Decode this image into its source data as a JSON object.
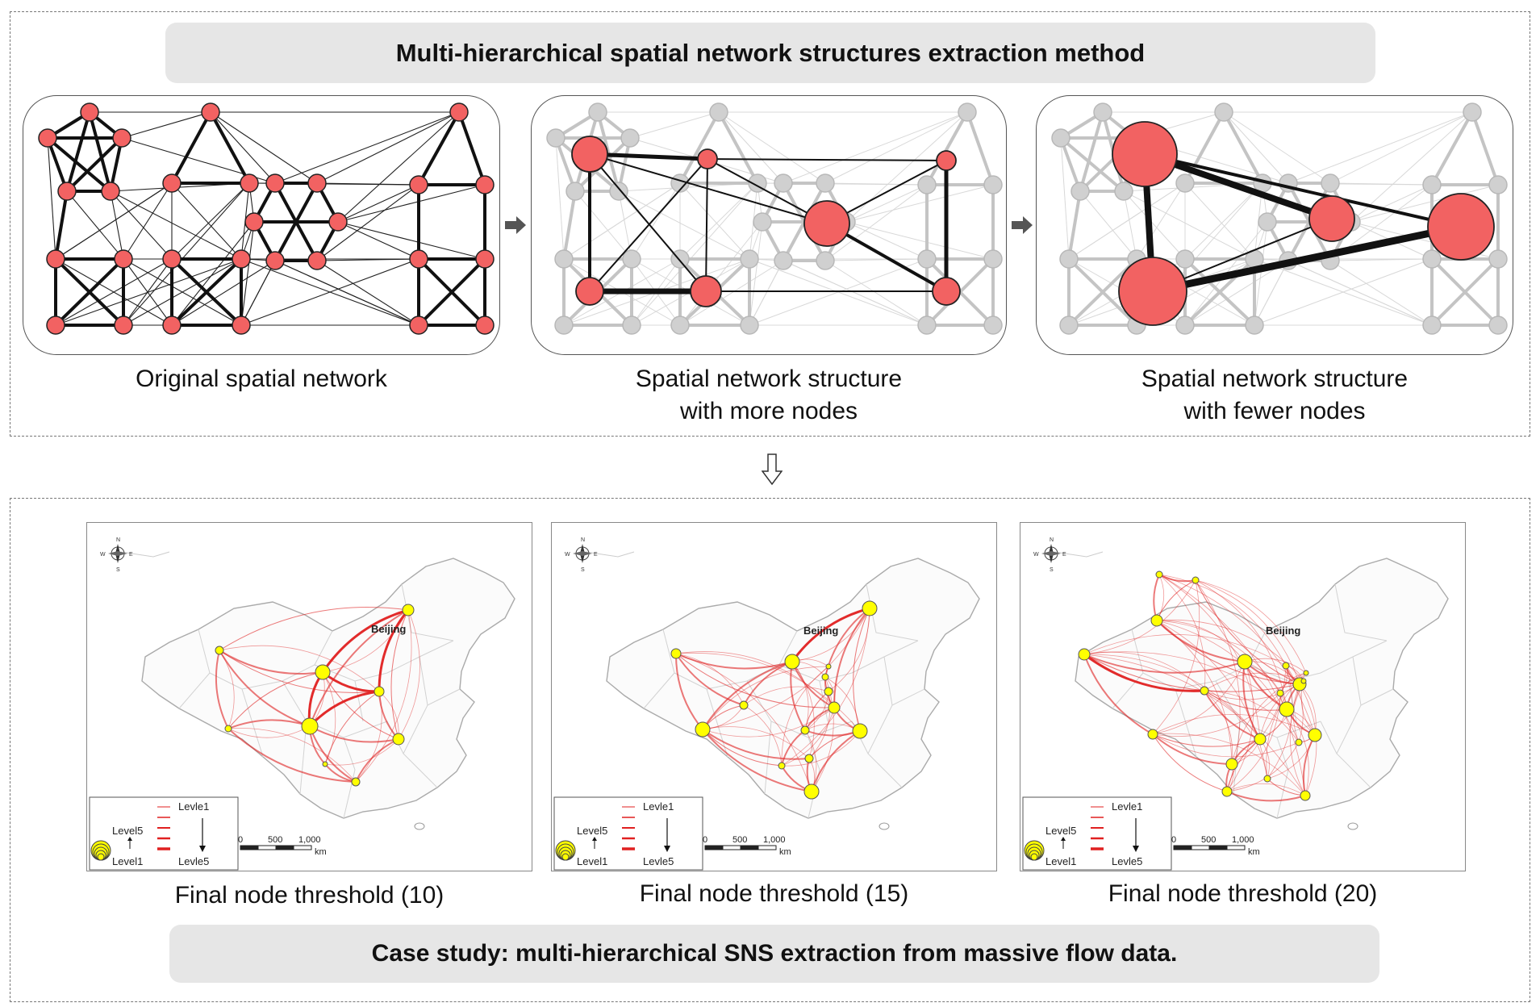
{
  "top": {
    "title": "Multi-hierarchical spatial network structures extraction method",
    "captions": [
      {
        "line1": "Original spatial network",
        "line2": ""
      },
      {
        "line1": "Spatial network structure",
        "line2": "with more nodes"
      },
      {
        "line1": "Spatial network structure",
        "line2": "with fewer nodes"
      }
    ]
  },
  "bottom": {
    "title": "Case study: multi-hierarchical SNS extraction from massive flow data.",
    "maps": [
      {
        "caption": "Final node threshold (10)",
        "city_label": "Beijing"
      },
      {
        "caption": "Final node threshold (15)",
        "city_label": "Beijing"
      },
      {
        "caption": "Final node threshold (20)",
        "city_label": "Beijing"
      }
    ],
    "legend": {
      "edge_top": "Levle1",
      "edge_bottom": "Levle5",
      "node_top": "Level5",
      "node_bottom": "Level1"
    },
    "scale": {
      "t0": "0",
      "t1": "500",
      "t2": "1,000",
      "unit": "km"
    },
    "compass": {
      "n": "N",
      "s": "S",
      "e": "E",
      "w": "W"
    }
  },
  "colors": {
    "node": "#f26262",
    "faded": "#c8c8c8",
    "flow": "#e02020",
    "city": "#ffff00"
  }
}
